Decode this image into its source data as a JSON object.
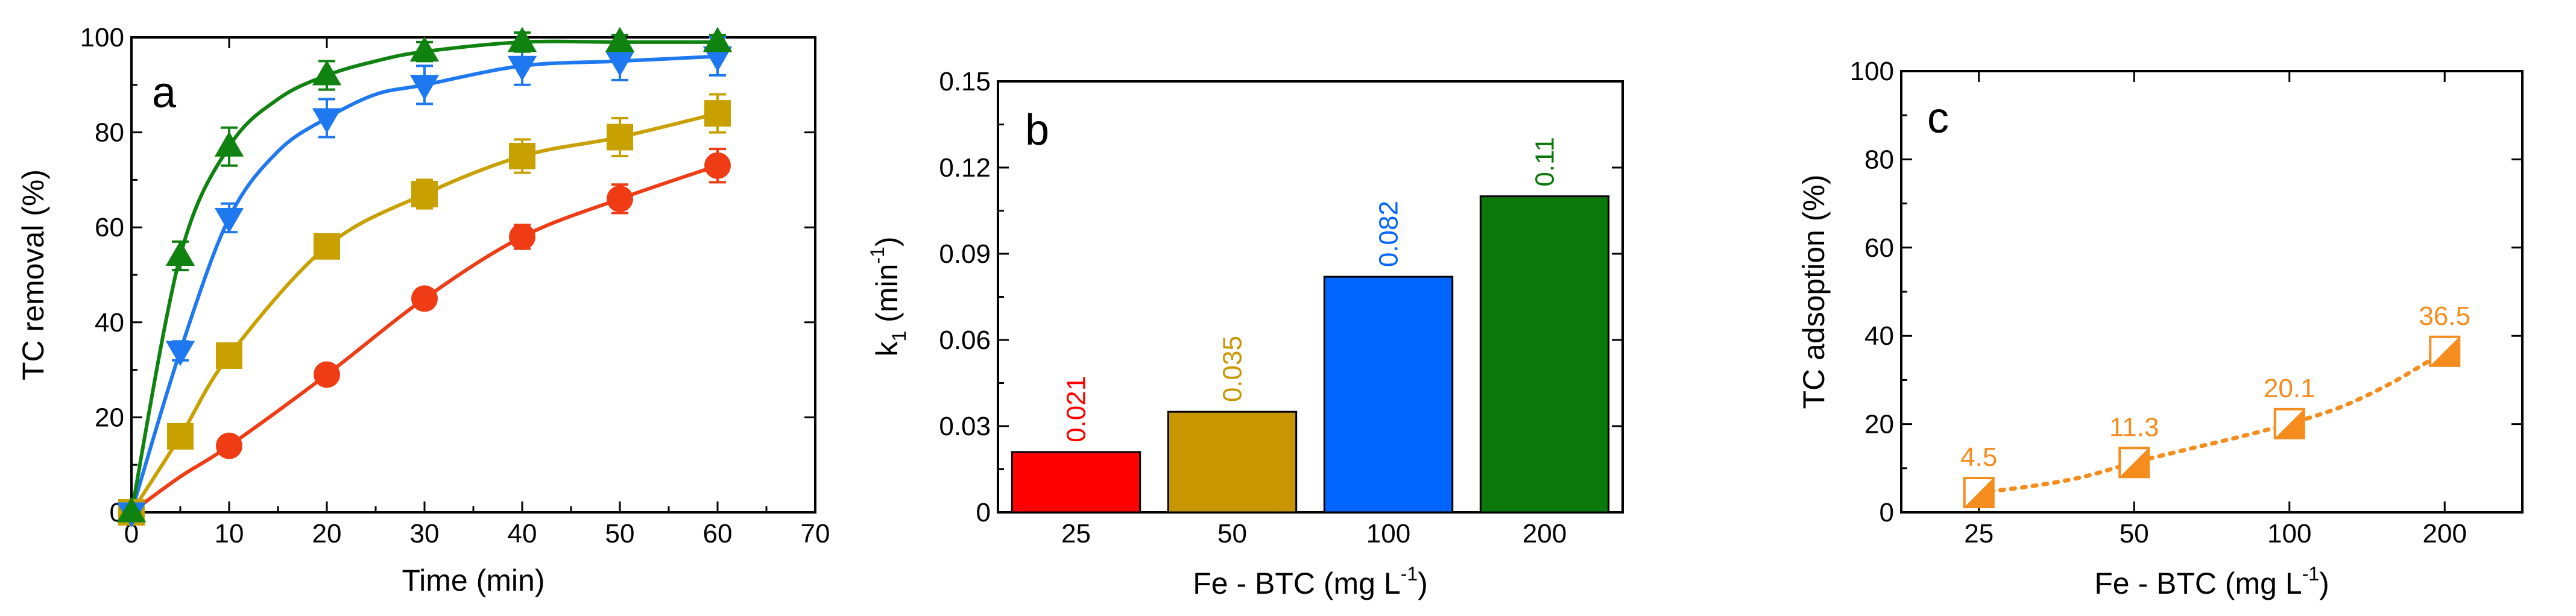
{
  "chart_data": [
    {
      "type": "line",
      "panel_label": "a",
      "xlabel": "Time (min)",
      "ylabel": "TC removal (%)",
      "xlim": [
        0,
        70
      ],
      "ylim": [
        0,
        100
      ],
      "xticks": [
        "0",
        "10",
        "20",
        "30",
        "40",
        "50",
        "60",
        "70"
      ],
      "yticks": [
        "0",
        "20",
        "40",
        "60",
        "80",
        "100"
      ],
      "series": [
        {
          "marker": "circle",
          "color": "#f03c14",
          "x": [
            0,
            10,
            20,
            30,
            40,
            50,
            60
          ],
          "y": [
            0,
            14,
            29,
            45,
            58,
            66,
            73
          ],
          "err": [
            0,
            1,
            1.5,
            2,
            2.5,
            3,
            3.5
          ],
          "fit_x": [
            0,
            5,
            10,
            20,
            30,
            40,
            50,
            60
          ],
          "fit_y": [
            0,
            7.5,
            14,
            29,
            45,
            58,
            66,
            73
          ]
        },
        {
          "marker": "square",
          "color": "#c8a000",
          "x": [
            0,
            5,
            10,
            20,
            30,
            40,
            50,
            60
          ],
          "y": [
            0,
            16,
            33,
            56,
            67,
            75,
            79,
            84
          ],
          "err": [
            0,
            1,
            1.5,
            2,
            3,
            3.5,
            4,
            4
          ],
          "fit_x": [
            0,
            5,
            10,
            20,
            30,
            40,
            50,
            60
          ],
          "fit_y": [
            0,
            16,
            33,
            56,
            67,
            75,
            79,
            84
          ]
        },
        {
          "marker": "triangle-down",
          "color": "#1e78f0",
          "x": [
            0,
            5,
            10,
            20,
            30,
            40,
            50,
            60
          ],
          "y": [
            0,
            34,
            62,
            83,
            90,
            94,
            95,
            96
          ],
          "err": [
            0,
            2,
            3,
            4,
            4,
            4,
            4,
            4
          ],
          "fit_x": [
            0,
            5,
            10,
            15,
            20,
            25,
            30,
            40,
            50,
            60
          ],
          "fit_y": [
            0,
            34,
            62,
            76,
            83,
            88,
            90,
            94,
            95,
            96
          ]
        },
        {
          "marker": "triangle-up",
          "color": "#0f820f",
          "x": [
            0,
            5,
            10,
            20,
            30,
            40,
            50,
            60
          ],
          "y": [
            0,
            54,
            77,
            92,
            97,
            99,
            99,
            99
          ],
          "err": [
            0,
            3,
            4,
            3,
            2,
            2,
            1.5,
            1.5
          ],
          "fit_x": [
            0,
            5,
            10,
            15,
            20,
            25,
            30,
            40,
            50,
            60
          ],
          "fit_y": [
            0,
            54,
            77,
            87,
            92,
            95,
            97,
            99,
            99,
            99
          ]
        }
      ]
    },
    {
      "type": "bar",
      "panel_label": "b",
      "xlabel": "Fe - BTC (mg L",
      "xlabel_sup": "-1",
      "xlabel_end": ")",
      "ylabel": "k",
      "ylabel_sub": "1",
      "ylabel_unit": " (min",
      "ylabel_sup": "-1",
      "ylabel_end": ")",
      "ylim": [
        0,
        0.15
      ],
      "yticks": [
        "0",
        "0.03",
        "0.06",
        "0.09",
        "0.12",
        "0.15"
      ],
      "categories": [
        "25",
        "50",
        "100",
        "200"
      ],
      "values": [
        0.021,
        0.035,
        0.082,
        0.11
      ],
      "value_labels": [
        "0.021",
        "0.035",
        "0.082",
        "0.11"
      ],
      "colors": [
        "#ff0000",
        "#c89600",
        "#0064ff",
        "#0a780a"
      ]
    },
    {
      "type": "scatter",
      "panel_label": "c",
      "xlabel": "Fe - BTC (mg L",
      "xlabel_sup": "-1",
      "xlabel_end": ")",
      "ylabel": "TC adsoption (%)",
      "ylim": [
        0,
        100
      ],
      "yticks": [
        "0",
        "20",
        "40",
        "60",
        "80",
        "100"
      ],
      "categories": [
        "25",
        "50",
        "100",
        "200"
      ],
      "values": [
        4.5,
        11.3,
        20.1,
        36.5
      ],
      "value_labels": [
        "4.5",
        "11.3",
        "20.1",
        "36.5"
      ],
      "color": "#f58c1e",
      "fit_y": [
        4.5,
        5.9,
        8.0,
        11.3,
        14.2,
        17.0,
        20.1,
        23.9,
        29.5,
        36.5
      ]
    }
  ]
}
